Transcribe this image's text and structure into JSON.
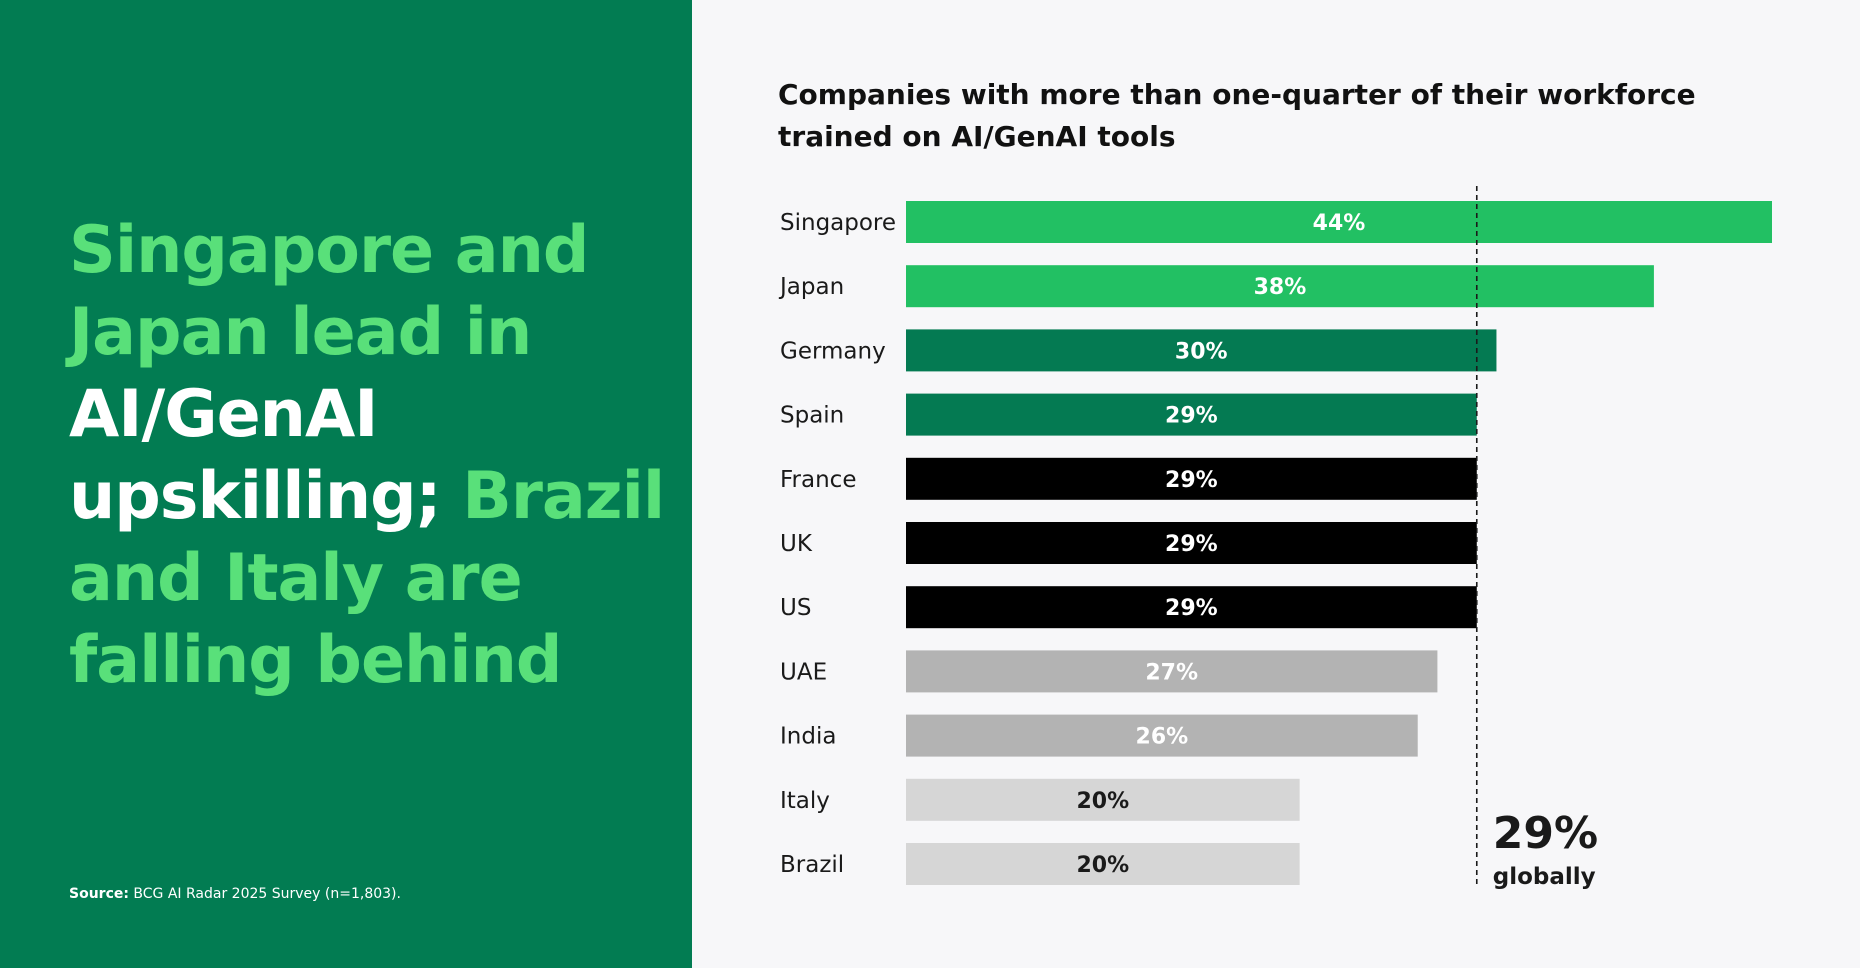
{
  "headline": {
    "parts": [
      {
        "text": "Singapore and Japan lead in ",
        "tone": "green"
      },
      {
        "text": "AI/GenAI upskilling; ",
        "tone": "white"
      },
      {
        "text": "Brazil and Italy are falling behind",
        "tone": "green"
      }
    ]
  },
  "source": {
    "label": "Source:",
    "text": "BCG AI Radar 2025 Survey (n=1,803)."
  },
  "colors": {
    "left_panel": "#027c52",
    "headline_green": "#59e07a",
    "headline_white": "#ffffff",
    "bar_bright_green": "#22c063",
    "bar_dark_green": "#047a52",
    "bar_black": "#000000",
    "bar_mid_gray": "#b3b3b3",
    "bar_light_gray": "#d6d6d6"
  },
  "chart_data": {
    "type": "bar",
    "orientation": "horizontal",
    "title": "Companies with more than one-quarter of their workforce trained on AI/GenAI tools",
    "categories": [
      "Singapore",
      "Japan",
      "Germany",
      "Spain",
      "France",
      "UK",
      "US",
      "UAE",
      "India",
      "Italy",
      "Brazil"
    ],
    "values": [
      44,
      38,
      30,
      29,
      29,
      29,
      29,
      27,
      26,
      20,
      20
    ],
    "value_labels": [
      "44%",
      "38%",
      "30%",
      "29%",
      "29%",
      "29%",
      "29%",
      "27%",
      "26%",
      "20%",
      "20%"
    ],
    "bar_colors": [
      "#22c063",
      "#22c063",
      "#047a52",
      "#047a52",
      "#000000",
      "#000000",
      "#000000",
      "#b3b3b3",
      "#b3b3b3",
      "#d6d6d6",
      "#d6d6d6"
    ],
    "label_colors": [
      "#ffffff",
      "#ffffff",
      "#ffffff",
      "#ffffff",
      "#ffffff",
      "#ffffff",
      "#ffffff",
      "#ffffff",
      "#ffffff",
      "#1a1a1a",
      "#1a1a1a"
    ],
    "xlim": [
      0,
      44
    ],
    "xlabel": "",
    "ylabel": "",
    "grid": false,
    "reference_line": {
      "value": 29,
      "style": "dashed",
      "label_value": "29%",
      "label_text": "globally"
    }
  }
}
